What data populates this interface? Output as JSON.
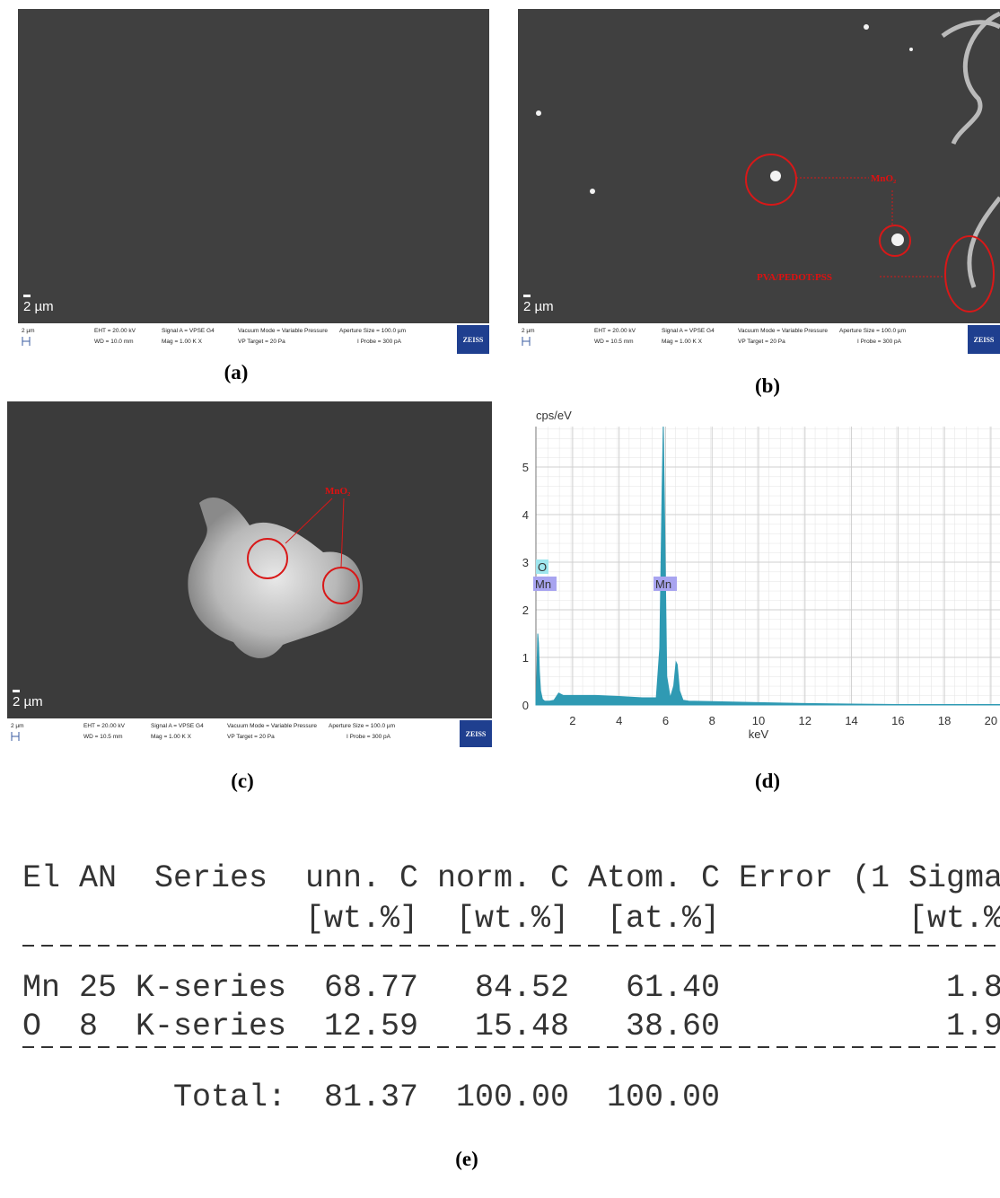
{
  "panels": [
    {
      "label": "(a)",
      "scale_label": "2 µm",
      "info_bar": {
        "scale": "2 µm",
        "eht": "EHT = 20.00 kV",
        "wd": "WD = 10.0 mm",
        "signal": "Signal A = VPSE G4",
        "mag": "Mag =  1.00 K X",
        "vacuum": "Vacuum Mode = Variable Pressure",
        "vp_target": "VP Target =  20 Pa",
        "aperture": "Aperture Size = 100.0 µm",
        "probe": "I Probe =  300 pA",
        "logo": "ZEISS"
      }
    },
    {
      "label": "(b)",
      "scale_label": "2 µm",
      "info_bar": {
        "scale": "2 µm",
        "eht": "EHT = 20.00 kV",
        "wd": "WD = 10.5 mm",
        "signal": "Signal A = VPSE G4",
        "mag": "Mag =  1.00 K X",
        "vacuum": "Vacuum Mode = Variable Pressure",
        "vp_target": "VP Target =  20 Pa",
        "aperture": "Aperture Size = 100.0 µm",
        "probe": "I Probe =  300 pA",
        "logo": "ZEISS"
      },
      "annotations": [
        "MnO₂",
        "PVA/PEDOT:PSS"
      ]
    },
    {
      "label": "(c)",
      "scale_label": "2 µm",
      "info_bar": {
        "scale": "2 µm",
        "eht": "EHT = 20.00 kV",
        "wd": "WD = 10.5 mm",
        "signal": "Signal A = VPSE G4",
        "mag": "Mag =  1.00 K X",
        "vacuum": "Vacuum Mode = Variable Pressure",
        "vp_target": "VP Target =  20 Pa",
        "aperture": "Aperture Size = 100.0 µm",
        "probe": "I Probe =  300 pA",
        "logo": "ZEISS"
      },
      "annotations": [
        "MnO₂"
      ]
    }
  ],
  "chart_data": {
    "type": "area",
    "panel_label": "(d)",
    "y_label": "cps/eV",
    "x_label": "keV",
    "color": "#2f9ab3",
    "x": [
      0.42,
      0.46,
      0.5,
      0.53,
      0.57,
      0.62,
      0.7,
      0.8,
      1.0,
      1.2,
      1.4,
      1.6,
      2.0,
      3.0,
      4.0,
      5.0,
      5.6,
      5.75,
      5.85,
      5.9,
      5.95,
      6.05,
      6.2,
      6.35,
      6.45,
      6.5,
      6.6,
      6.75,
      7.0,
      8.0,
      10.0,
      12.0,
      14.0,
      16.0,
      18.0,
      20.0,
      20.39
    ],
    "values": [
      0.1,
      0.6,
      1.5,
      1.3,
      0.7,
      0.3,
      0.12,
      0.08,
      0.08,
      0.1,
      0.25,
      0.2,
      0.2,
      0.2,
      0.18,
      0.15,
      0.15,
      1.2,
      4.5,
      5.85,
      4.2,
      0.6,
      0.15,
      0.4,
      0.9,
      0.85,
      0.3,
      0.1,
      0.08,
      0.07,
      0.05,
      0.03,
      0.02,
      0.01,
      0.01,
      0.01,
      0.01
    ],
    "annotations": [
      "O",
      "Mn",
      "Mn"
    ],
    "xlim": [
      0.42,
      20.39
    ],
    "ylim": [
      0,
      5.85
    ],
    "xticks": [
      2,
      4,
      6,
      8,
      10,
      12,
      14,
      16,
      18,
      20
    ],
    "yticks": [
      0,
      1,
      2,
      3,
      4,
      5
    ],
    "grid": true
  },
  "table": {
    "label": "(e)",
    "header": [
      "El",
      "AN",
      "Series",
      "unn. C",
      "norm. C",
      "Atom. C",
      "Error (1 Sigma"
    ],
    "units": [
      "[wt.%]",
      "[wt.%]",
      "[at.%]",
      "[wt.%"
    ],
    "rows": [
      [
        "Mn",
        "25",
        "K-series",
        "68.77",
        "84.52",
        "61.40",
        "1.8"
      ],
      [
        "O",
        "8",
        "K-series",
        "12.59",
        "15.48",
        "38.60",
        "1.9"
      ]
    ],
    "total": [
      "Total:",
      "81.37",
      "100.00",
      "100.00"
    ]
  }
}
